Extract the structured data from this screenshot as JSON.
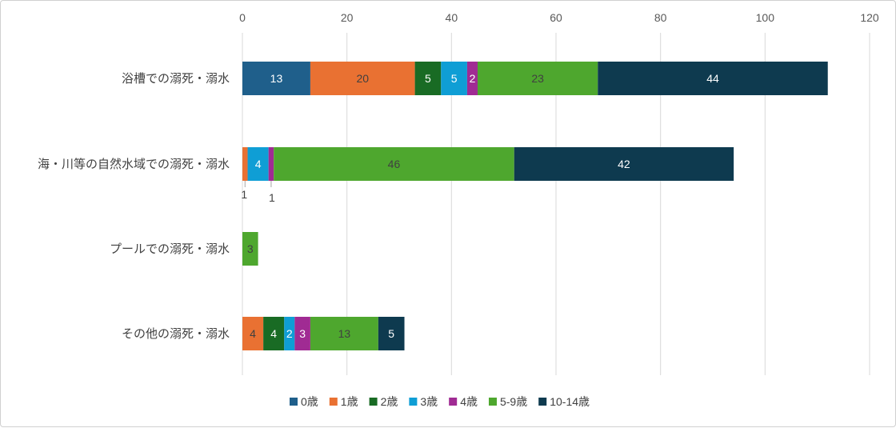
{
  "chart_data": {
    "type": "bar",
    "orientation": "horizontal",
    "stacked": true,
    "categories": [
      "浴槽での溺死・溺水",
      "海・川等の自然水域での溺死・溺水",
      "プールでの溺死・溺水",
      "その他の溺死・溺水"
    ],
    "series": [
      {
        "name": "0歳",
        "color": "#1f5f8b",
        "values": [
          13,
          0,
          0,
          0
        ]
      },
      {
        "name": "1歳",
        "color": "#e97132",
        "values": [
          20,
          1,
          0,
          4
        ]
      },
      {
        "name": "2歳",
        "color": "#196b24",
        "values": [
          5,
          0,
          0,
          4
        ]
      },
      {
        "name": "3歳",
        "color": "#0f9ed5",
        "values": [
          5,
          4,
          0,
          2
        ]
      },
      {
        "name": "4歳",
        "color": "#a02b93",
        "values": [
          2,
          1,
          0,
          3
        ]
      },
      {
        "name": "5-9歳",
        "color": "#4ea72e",
        "values": [
          23,
          46,
          3,
          13
        ]
      },
      {
        "name": "10-14歳",
        "color": "#0e3a4f",
        "values": [
          44,
          42,
          0,
          5
        ]
      }
    ],
    "xlim": [
      0,
      120
    ],
    "xticks": [
      0,
      20,
      40,
      60,
      80,
      100,
      120
    ],
    "x_axis_position": "top",
    "gridlines": true,
    "legend_position": "bottom",
    "title": "",
    "xlabel": "",
    "ylabel": ""
  }
}
